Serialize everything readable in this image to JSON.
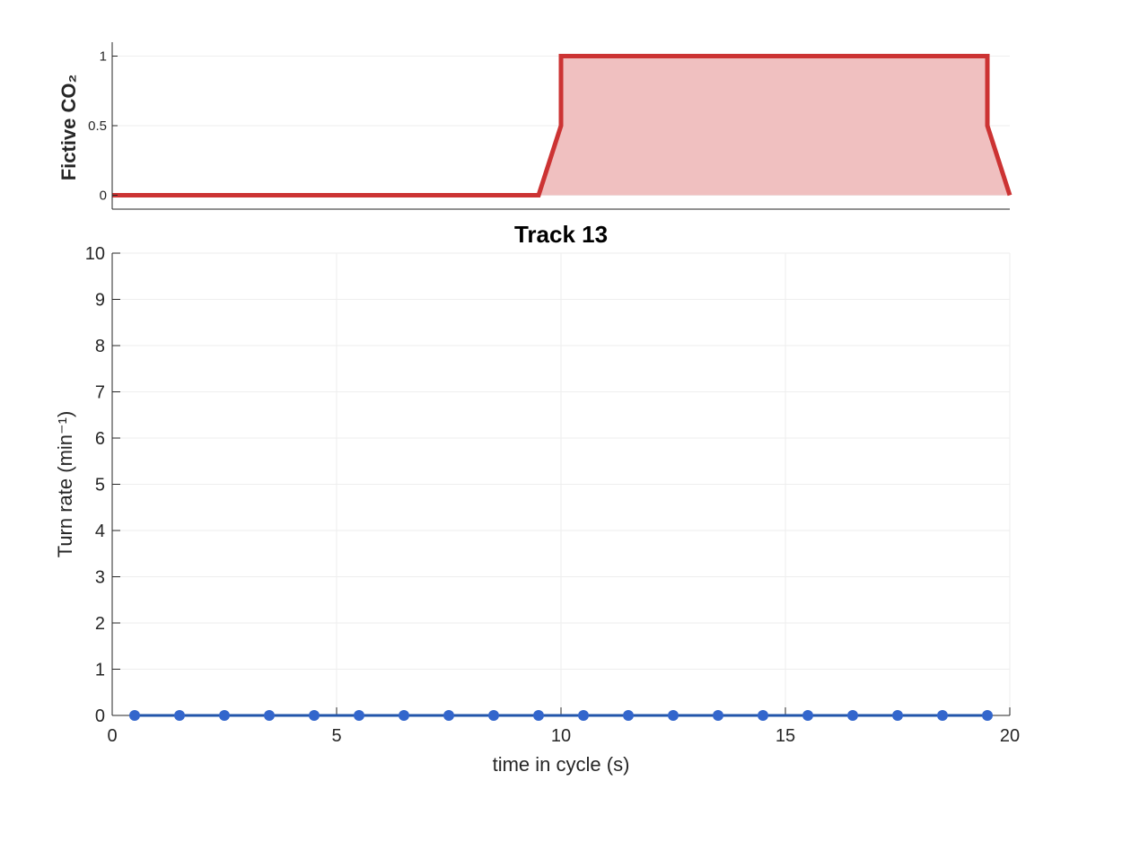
{
  "colors": {
    "co2_line": "#cc3333",
    "co2_fill": "#f0c0c0",
    "turn_line": "#2255aa",
    "turn_marker": "#3366cc",
    "axis": "#262626",
    "grid": "#eeeeee"
  },
  "chart_data": [
    {
      "type": "area",
      "ylabel": "Fictive CO₂",
      "xlim": [
        0,
        20
      ],
      "ylim": [
        -0.1,
        1.1
      ],
      "yticks": [
        0,
        0.5,
        1
      ],
      "ytick_labels": [
        "0",
        "0.5",
        "1"
      ],
      "grid": true,
      "series": [
        {
          "x": [
            0,
            9.5,
            10,
            10,
            19.5,
            19.5,
            20
          ],
          "y": [
            0,
            0,
            0.5,
            1,
            1,
            0.5,
            0
          ]
        }
      ]
    },
    {
      "type": "line",
      "title": "Track 13",
      "xlabel": "time in cycle (s)",
      "ylabel": "Turn rate (min⁻¹)",
      "xlim": [
        0,
        20
      ],
      "ylim": [
        0,
        10
      ],
      "xticks": [
        0,
        5,
        10,
        15,
        20
      ],
      "xtick_labels": [
        "0",
        "5",
        "10",
        "15",
        "20"
      ],
      "yticks": [
        0,
        1,
        2,
        3,
        4,
        5,
        6,
        7,
        8,
        9,
        10
      ],
      "ytick_labels": [
        "0",
        "1",
        "2",
        "3",
        "4",
        "5",
        "6",
        "7",
        "8",
        "9",
        "10"
      ],
      "grid": true,
      "series": [
        {
          "x": [
            0.5,
            1.5,
            2.5,
            3.5,
            4.5,
            5.5,
            6.5,
            7.5,
            8.5,
            9.5,
            10.5,
            11.5,
            12.5,
            13.5,
            14.5,
            15.5,
            16.5,
            17.5,
            18.5,
            19.5
          ],
          "y": [
            0,
            0,
            0,
            0,
            0,
            0,
            0,
            0,
            0,
            0,
            0,
            0,
            0,
            0,
            0,
            0,
            0,
            0,
            0,
            0
          ]
        }
      ]
    }
  ]
}
